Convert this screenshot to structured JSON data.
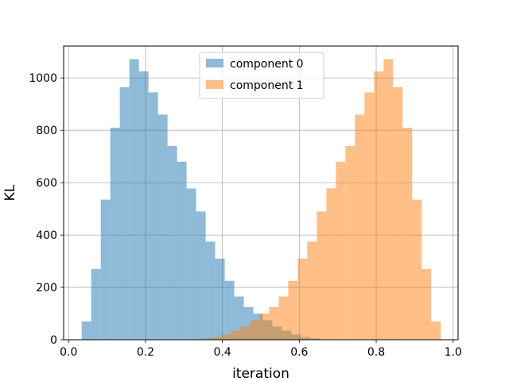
{
  "chart_data": {
    "type": "bar",
    "subtype": "overlapping-histogram",
    "title": "",
    "xlabel": "iteration",
    "ylabel": "KL",
    "xlim": [
      -0.013,
      1.013
    ],
    "ylim": [
      0,
      1122
    ],
    "xticks": [
      0.0,
      0.2,
      0.4,
      0.6,
      0.8,
      1.0
    ],
    "xtick_labels": [
      "0.0",
      "0.2",
      "0.4",
      "0.6",
      "0.8",
      "1.0"
    ],
    "yticks": [
      0,
      200,
      400,
      600,
      800,
      1000
    ],
    "ytick_labels": [
      "0",
      "200",
      "400",
      "600",
      "800",
      "1000"
    ],
    "grid": true,
    "legend_position": "top-center",
    "bar_opacity": 0.5,
    "series": [
      {
        "name": "component 0",
        "color": "#1f77b4",
        "bin_start": 0.034,
        "bin_width": 0.0248,
        "values": [
          70,
          270,
          535,
          810,
          965,
          1072,
          1025,
          945,
          860,
          740,
          680,
          578,
          490,
          375,
          310,
          225,
          165,
          125,
          100,
          75,
          50,
          35,
          20,
          10,
          5
        ]
      },
      {
        "name": "component 1",
        "color": "#ff7f0e",
        "bin_start": 0.348,
        "bin_width": 0.0248,
        "values": [
          5,
          10,
          20,
          35,
          50,
          75,
          100,
          125,
          165,
          225,
          310,
          375,
          490,
          578,
          680,
          740,
          860,
          945,
          1025,
          1072,
          965,
          810,
          535,
          270,
          70
        ]
      }
    ]
  }
}
